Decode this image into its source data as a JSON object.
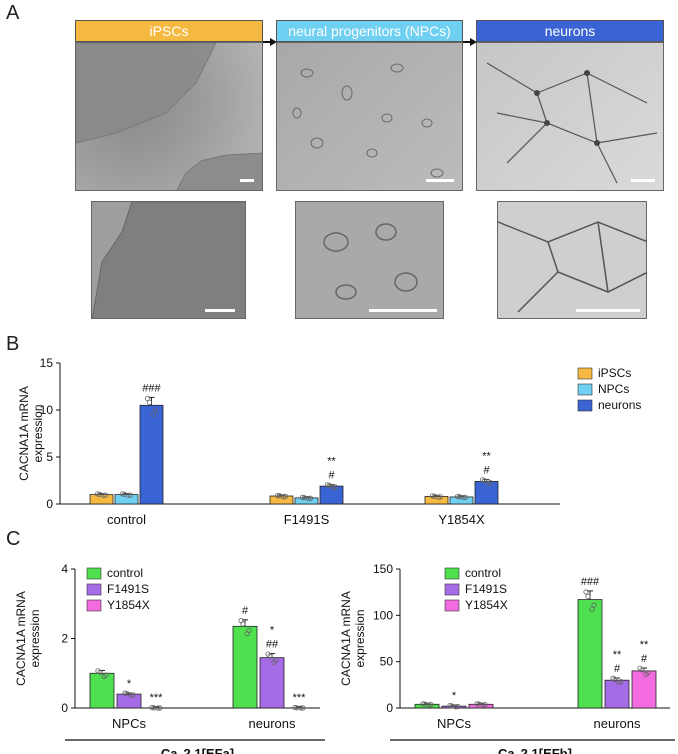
{
  "panels": {
    "A": "A",
    "B": "B",
    "C": "C"
  },
  "stages": [
    {
      "label": "iPSCs",
      "color": "#f5b942"
    },
    {
      "label": "neural progenitors (NPCs)",
      "color": "#6fd0f2"
    },
    {
      "label": "neurons",
      "color": "#3a64d4"
    }
  ],
  "colors": {
    "ipsc": "#f5b942",
    "npc": "#6fd0f2",
    "neuron": "#3a64d4",
    "control": "#4fe04f",
    "f1491s": "#a66be6",
    "y1854x": "#f36be0"
  },
  "chart_data": [
    {
      "type": "bar",
      "panel": "B",
      "ylabel": "CACNA1A mRNA expression",
      "ylim": [
        0,
        15
      ],
      "yticks": [
        "0",
        "5",
        "10",
        "15"
      ],
      "categories": [
        "control",
        "F1491S",
        "Y1854X"
      ],
      "series": [
        {
          "name": "iPSCs",
          "color": "#f5b942",
          "values": [
            1.0,
            0.85,
            0.8
          ]
        },
        {
          "name": "NPCs",
          "color": "#6fd0f2",
          "values": [
            1.0,
            0.65,
            0.75
          ]
        },
        {
          "name": "neurons",
          "color": "#3a64d4",
          "values": [
            10.5,
            1.9,
            2.4
          ]
        }
      ],
      "annotations": [
        [
          "",
          "",
          "###"
        ],
        [
          "",
          "",
          "**\n#"
        ],
        [
          "",
          "",
          "**\n#"
        ]
      ],
      "legend": "top-right"
    },
    {
      "type": "bar",
      "panel": "C-left",
      "ylabel": "CACNA1A mRNA expression",
      "ylim": [
        0,
        4
      ],
      "yticks": [
        "0",
        "2",
        "4"
      ],
      "categories": [
        "NPCs",
        "neurons"
      ],
      "series": [
        {
          "name": "control",
          "color": "#4fe04f",
          "values": [
            1.0,
            2.35
          ]
        },
        {
          "name": "F1491S",
          "color": "#a66be6",
          "values": [
            0.4,
            1.45
          ]
        },
        {
          "name": "Y1854X",
          "color": "#f36be0",
          "values": [
            0.0,
            0.0
          ]
        }
      ],
      "annotations": [
        [
          "",
          "*",
          "***"
        ],
        [
          "#",
          "*\n##",
          "***"
        ]
      ],
      "xgroup_label": "Ca",
      "xgroup_sub": "V",
      "xgroup_rest": "2.1[EFa]",
      "legend": "top-left"
    },
    {
      "type": "bar",
      "panel": "C-right",
      "ylabel": "CACNA1A mRNA expression",
      "ylim": [
        0,
        150
      ],
      "yticks": [
        "0",
        "50",
        "100",
        "150"
      ],
      "categories": [
        "NPCs",
        "neurons"
      ],
      "series": [
        {
          "name": "control",
          "color": "#4fe04f",
          "values": [
            4,
            117
          ]
        },
        {
          "name": "F1491S",
          "color": "#a66be6",
          "values": [
            2,
            30
          ]
        },
        {
          "name": "Y1854X",
          "color": "#f36be0",
          "values": [
            4,
            40
          ]
        }
      ],
      "annotations": [
        [
          "",
          "*",
          ""
        ],
        [
          "###",
          "**\n#",
          "**\n#"
        ]
      ],
      "xgroup_label": "Ca",
      "xgroup_sub": "V",
      "xgroup_rest": "2.1[EFb]",
      "legend": "top-left"
    }
  ]
}
